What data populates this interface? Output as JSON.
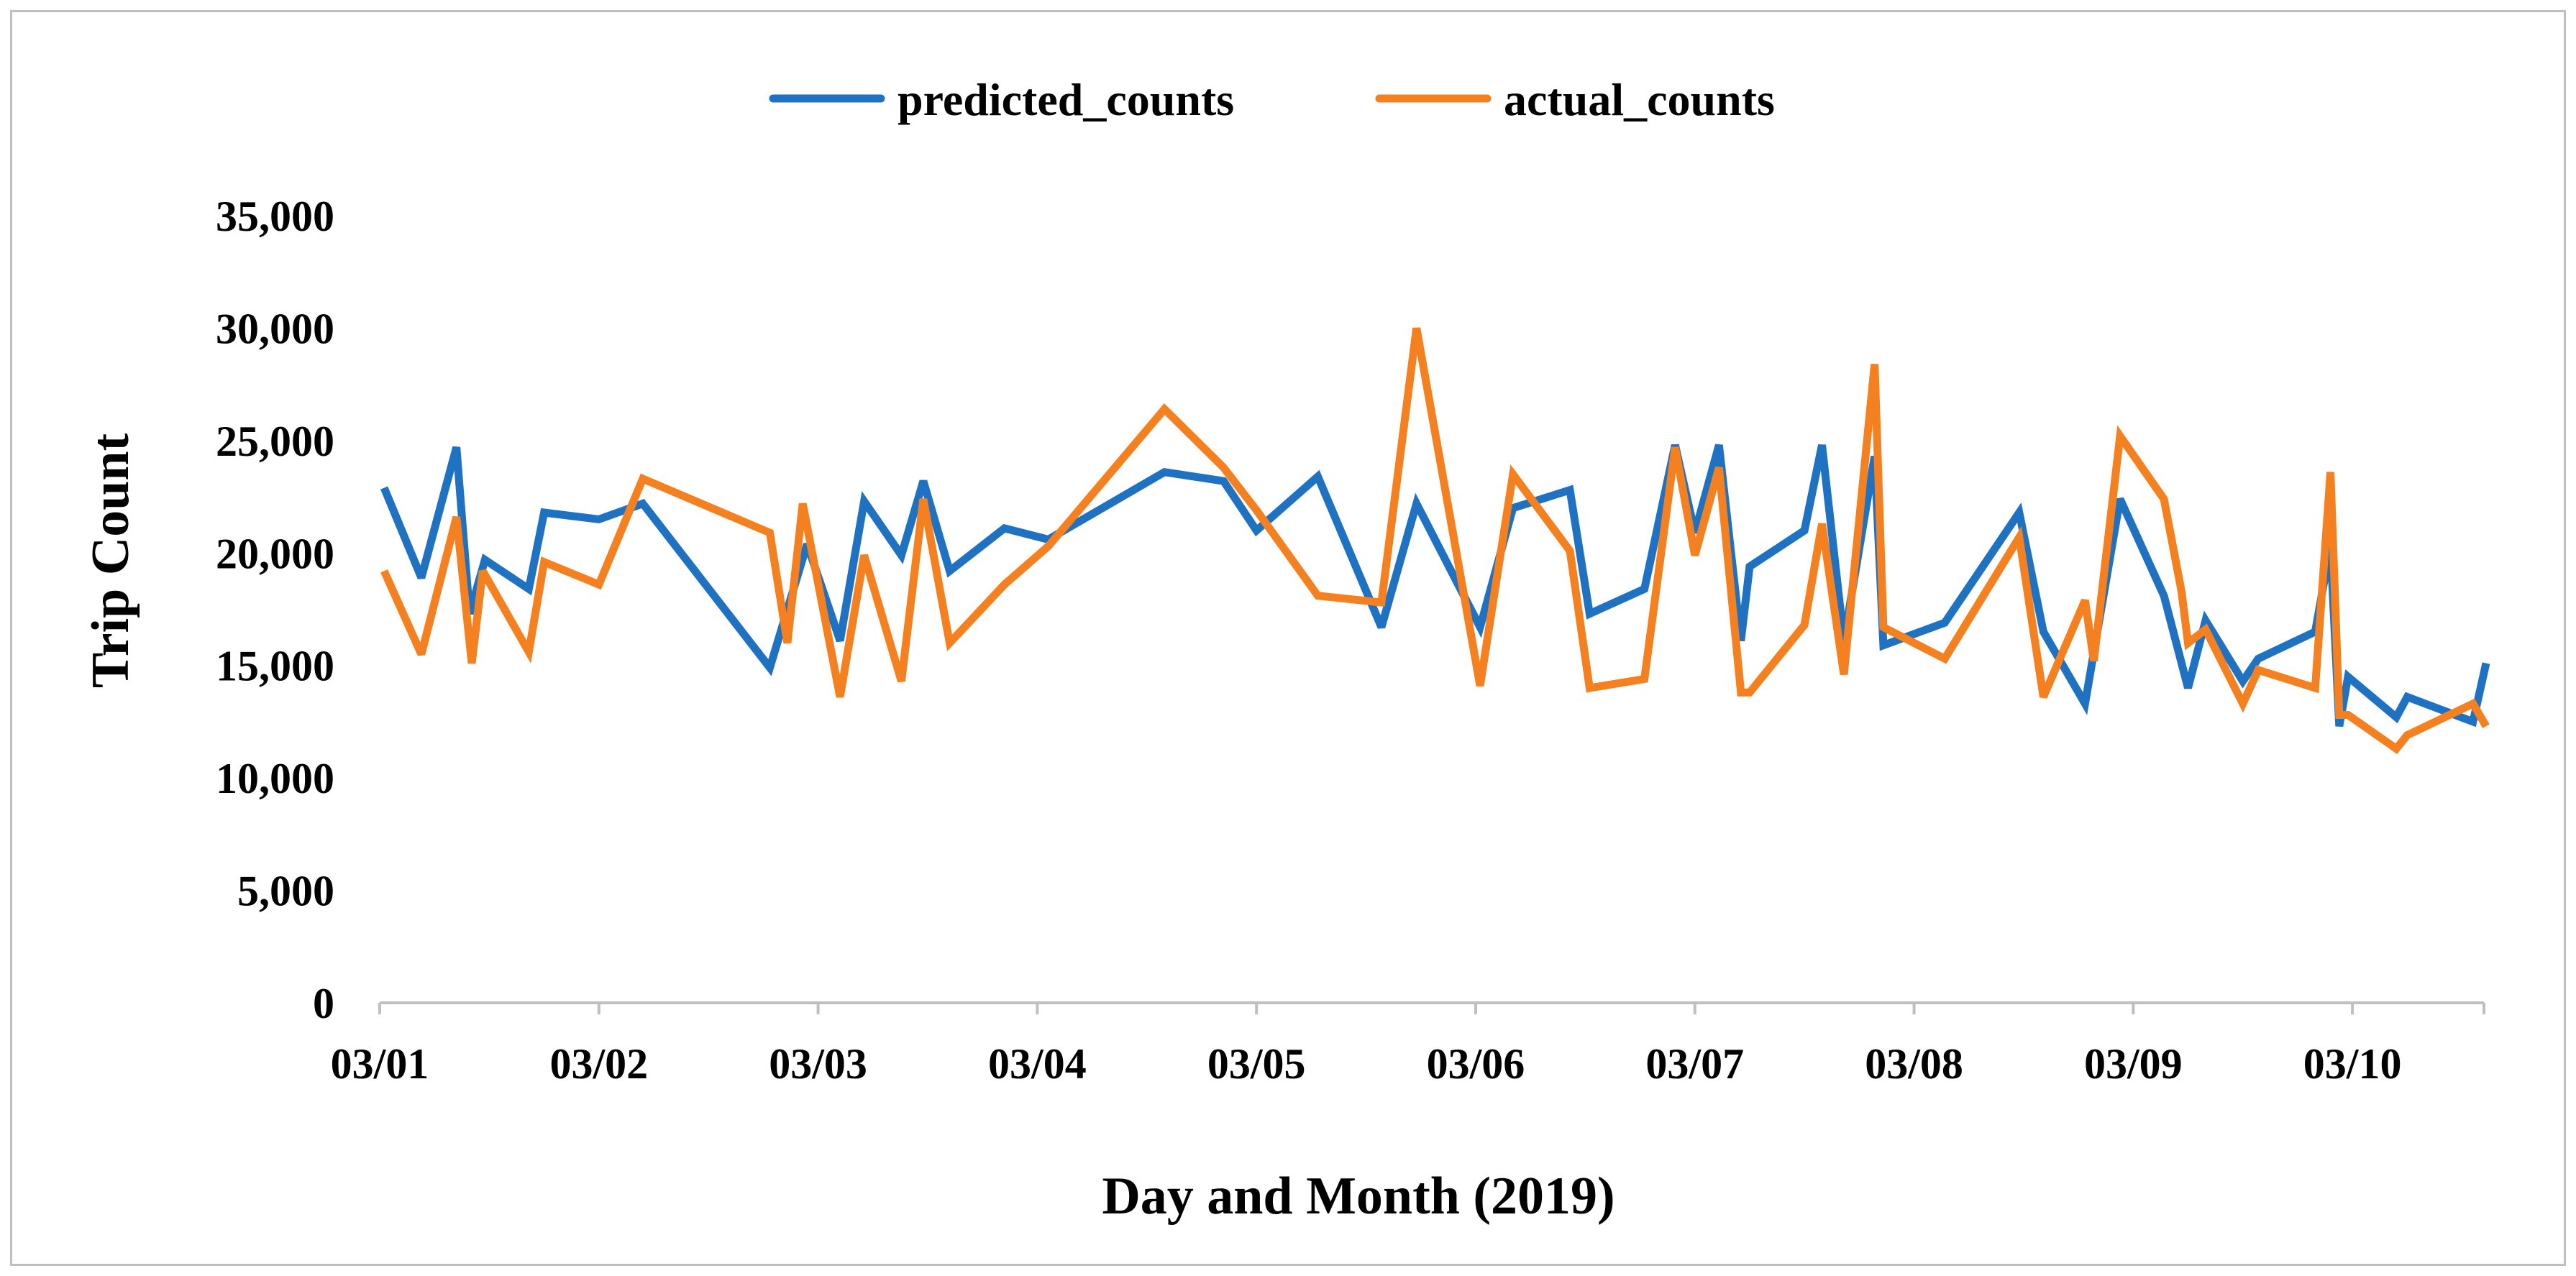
{
  "chart_data": {
    "type": "line",
    "title": "",
    "xlabel": "Day and Month (2019)",
    "ylabel": "Trip Count",
    "ylim": [
      0,
      35000
    ],
    "y_ticks": [
      0,
      5000,
      10000,
      15000,
      20000,
      25000,
      30000,
      35000
    ],
    "y_tick_labels": [
      "0",
      "5,000",
      "10,000",
      "15,000",
      "20,000",
      "25,000",
      "30,000",
      "35,000"
    ],
    "xlim": [
      0,
      9.6
    ],
    "x_ticks": [
      0,
      1,
      2,
      3,
      4,
      5,
      6,
      7,
      8,
      9
    ],
    "x_tick_labels": [
      "03/01",
      "03/02",
      "03/03",
      "03/04",
      "03/05",
      "03/06",
      "03/07",
      "03/08",
      "03/09",
      "03/10"
    ],
    "grid": false,
    "legend_position": "top",
    "series": [
      {
        "name": "predicted_counts",
        "color": "#1f72c2",
        "points": [
          [
            0.02,
            22900
          ],
          [
            0.19,
            18900
          ],
          [
            0.35,
            24700
          ],
          [
            0.41,
            17300
          ],
          [
            0.48,
            19700
          ],
          [
            0.68,
            18400
          ],
          [
            0.75,
            21800
          ],
          [
            1.0,
            21500
          ],
          [
            1.2,
            22200
          ],
          [
            1.78,
            14900
          ],
          [
            1.95,
            20400
          ],
          [
            2.1,
            16100
          ],
          [
            2.21,
            22300
          ],
          [
            2.38,
            19900
          ],
          [
            2.48,
            23200
          ],
          [
            2.6,
            19200
          ],
          [
            2.85,
            21100
          ],
          [
            3.05,
            20600
          ],
          [
            3.58,
            23600
          ],
          [
            3.85,
            23200
          ],
          [
            4.0,
            21000
          ],
          [
            4.28,
            23400
          ],
          [
            4.57,
            16700
          ],
          [
            4.73,
            22200
          ],
          [
            5.02,
            16700
          ],
          [
            5.17,
            22000
          ],
          [
            5.43,
            22800
          ],
          [
            5.52,
            17300
          ],
          [
            5.77,
            18400
          ],
          [
            5.91,
            24800
          ],
          [
            6.0,
            20900
          ],
          [
            6.11,
            24800
          ],
          [
            6.21,
            16100
          ],
          [
            6.25,
            19400
          ],
          [
            6.5,
            21000
          ],
          [
            6.58,
            24800
          ],
          [
            6.68,
            16100
          ],
          [
            6.82,
            24300
          ],
          [
            6.86,
            15900
          ],
          [
            7.14,
            16900
          ],
          [
            7.48,
            21800
          ],
          [
            7.59,
            16500
          ],
          [
            7.78,
            13300
          ],
          [
            7.94,
            22400
          ],
          [
            8.14,
            18100
          ],
          [
            8.25,
            14000
          ],
          [
            8.33,
            17000
          ],
          [
            8.5,
            14300
          ],
          [
            8.57,
            15300
          ],
          [
            8.83,
            16500
          ],
          [
            8.9,
            20300
          ],
          [
            8.94,
            12300
          ],
          [
            8.98,
            14500
          ],
          [
            9.2,
            12700
          ],
          [
            9.25,
            13600
          ],
          [
            9.55,
            12500
          ],
          [
            9.61,
            15100
          ]
        ]
      },
      {
        "name": "actual_counts",
        "color": "#f58020",
        "points": [
          [
            0.02,
            19200
          ],
          [
            0.19,
            15500
          ],
          [
            0.35,
            21600
          ],
          [
            0.42,
            15100
          ],
          [
            0.47,
            19200
          ],
          [
            0.68,
            15600
          ],
          [
            0.75,
            19600
          ],
          [
            1.0,
            18600
          ],
          [
            1.2,
            23300
          ],
          [
            1.78,
            20900
          ],
          [
            1.86,
            16000
          ],
          [
            1.93,
            22200
          ],
          [
            2.1,
            13600
          ],
          [
            2.21,
            19900
          ],
          [
            2.38,
            14300
          ],
          [
            2.48,
            22400
          ],
          [
            2.6,
            16000
          ],
          [
            2.85,
            18600
          ],
          [
            3.05,
            20300
          ],
          [
            3.58,
            26400
          ],
          [
            3.85,
            23800
          ],
          [
            4.0,
            21900
          ],
          [
            4.28,
            18100
          ],
          [
            4.57,
            17800
          ],
          [
            4.73,
            30000
          ],
          [
            5.02,
            14100
          ],
          [
            5.17,
            23500
          ],
          [
            5.43,
            20100
          ],
          [
            5.52,
            14000
          ],
          [
            5.77,
            14400
          ],
          [
            5.91,
            24700
          ],
          [
            6.0,
            19900
          ],
          [
            6.11,
            23800
          ],
          [
            6.21,
            13800
          ],
          [
            6.25,
            13800
          ],
          [
            6.5,
            16800
          ],
          [
            6.58,
            21300
          ],
          [
            6.68,
            14600
          ],
          [
            6.82,
            28400
          ],
          [
            6.86,
            16700
          ],
          [
            7.14,
            15300
          ],
          [
            7.48,
            20700
          ],
          [
            7.59,
            13600
          ],
          [
            7.78,
            17900
          ],
          [
            7.82,
            15200
          ],
          [
            7.94,
            25200
          ],
          [
            8.14,
            22400
          ],
          [
            8.22,
            18300
          ],
          [
            8.25,
            16000
          ],
          [
            8.33,
            16600
          ],
          [
            8.5,
            13300
          ],
          [
            8.57,
            14800
          ],
          [
            8.83,
            14000
          ],
          [
            8.9,
            23600
          ],
          [
            8.94,
            12800
          ],
          [
            8.98,
            12800
          ],
          [
            9.2,
            11300
          ],
          [
            9.25,
            11900
          ],
          [
            9.55,
            13300
          ],
          [
            9.61,
            12300
          ]
        ]
      }
    ]
  }
}
